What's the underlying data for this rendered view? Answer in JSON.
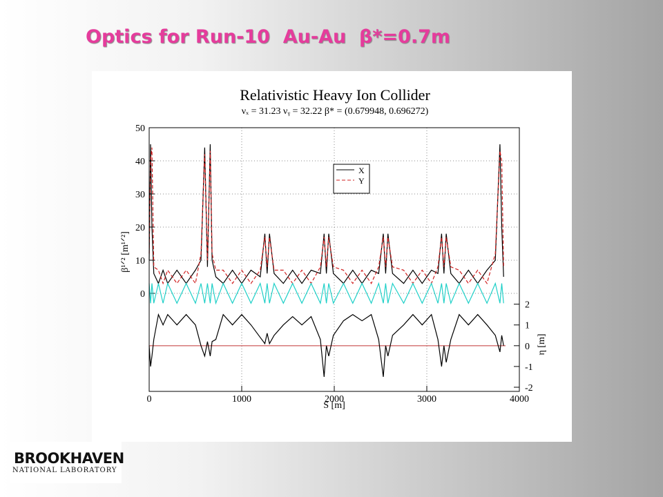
{
  "slide": {
    "title": "Optics for Run-10  Au-Au  β*=0.7m",
    "logo": {
      "name": "BROOKHAVEN",
      "subtitle": "NATIONAL LABORATORY"
    }
  },
  "chart_data": {
    "type": "line",
    "title": "Relativistic Heavy Ion Collider",
    "subtitle": "νₓ = 31.23  νᵧ = 32.22  β* = (0.679948, 0.696272)",
    "x_label": "S [m]",
    "y_label": "β¹ᐟ² [m¹ᐟ²]",
    "y2_label": "η [m]",
    "x": [
      0,
      15,
      30,
      50,
      100,
      150,
      200,
      300,
      400,
      500,
      560,
      600,
      630,
      660,
      680,
      720,
      800,
      900,
      1000,
      1100,
      1200,
      1250,
      1275,
      1300,
      1350,
      1450,
      1550,
      1650,
      1750,
      1850,
      1890,
      1915,
      1940,
      1990,
      2100,
      2200,
      2300,
      2400,
      2480,
      2530,
      2555,
      2580,
      2630,
      2750,
      2850,
      2950,
      3050,
      3120,
      3160,
      3185,
      3210,
      3260,
      3350,
      3450,
      3550,
      3650,
      3740,
      3790,
      3810,
      3830
    ],
    "series": [
      {
        "name": "X",
        "color": "#000000",
        "dashed": false,
        "values": [
          10,
          45,
          20,
          6,
          3,
          7,
          3,
          7,
          3,
          7,
          10,
          44,
          8,
          45,
          10,
          5,
          3,
          7,
          3,
          7,
          5,
          18,
          6,
          18,
          6,
          3,
          7,
          3,
          7,
          6,
          18,
          6,
          18,
          6,
          3,
          7,
          3,
          7,
          6,
          18,
          6,
          18,
          6,
          3,
          7,
          3,
          7,
          6,
          18,
          6,
          18,
          6,
          3,
          7,
          3,
          7,
          10,
          45,
          20,
          5
        ]
      },
      {
        "name": "Y",
        "color": "#d02020",
        "dashed": true,
        "values": [
          12,
          40,
          44,
          8,
          7,
          3,
          7,
          3,
          7,
          3,
          12,
          42,
          10,
          43,
          12,
          7,
          7,
          3,
          7,
          3,
          7,
          17,
          8,
          17,
          7,
          7,
          3,
          7,
          3,
          8,
          17,
          8,
          17,
          8,
          7,
          3,
          7,
          3,
          8,
          17,
          8,
          17,
          8,
          7,
          3,
          7,
          3,
          8,
          17,
          8,
          17,
          8,
          7,
          3,
          7,
          3,
          12,
          43,
          40,
          8
        ]
      },
      {
        "color": "#20d0c8",
        "dashed": false,
        "values": [
          3,
          -3,
          3,
          -3,
          3,
          -3,
          3,
          -3,
          3,
          -3,
          3,
          -3,
          3,
          -3,
          3,
          -3,
          3,
          -3,
          3,
          -3,
          3,
          -3,
          3,
          -3,
          3,
          -3,
          3,
          -3,
          3,
          -3,
          3,
          -3,
          3,
          -3,
          3,
          -3,
          3,
          -3,
          3,
          -3,
          3,
          -3,
          3,
          -3,
          3,
          -3,
          3,
          -3,
          3,
          -3,
          3,
          -3,
          3,
          -3,
          3,
          -3,
          3,
          -3,
          3,
          -3
        ]
      },
      {
        "color": "#000000",
        "dashed": false,
        "axis": "y2",
        "values": [
          0,
          -1,
          -0.5,
          0.3,
          1.5,
          1.0,
          1.5,
          1.0,
          1.5,
          1.0,
          0,
          -0.5,
          0.2,
          -0.5,
          0.2,
          0.3,
          1.5,
          1.0,
          1.5,
          1.0,
          0.4,
          0.1,
          0.6,
          0.1,
          0.5,
          1.0,
          1.4,
          1.0,
          1.4,
          0.3,
          -1.5,
          0,
          -0.5,
          0.5,
          1.2,
          1.5,
          1.2,
          1.5,
          0.3,
          -1.5,
          0,
          -0.5,
          0.5,
          1.0,
          1.5,
          1.0,
          1.5,
          0.3,
          -1.0,
          0,
          -0.8,
          0.3,
          1.5,
          1.0,
          1.5,
          1.0,
          0.5,
          -0.3,
          0.5,
          0
        ]
      }
    ],
    "y2_reference_line": 0,
    "reference_color": "#c03030",
    "xlim": [
      0,
      4000
    ],
    "xticks": [
      0,
      1000,
      2000,
      3000,
      4000
    ],
    "ylim": [
      -29.6,
      50
    ],
    "yticks": [
      0,
      10,
      20,
      30,
      40,
      50
    ],
    "y2lim": [
      -2.2,
      10.5
    ],
    "y2ticks": [
      -2,
      -1,
      0,
      1,
      2
    ],
    "grid": true,
    "legend": "upper center"
  }
}
